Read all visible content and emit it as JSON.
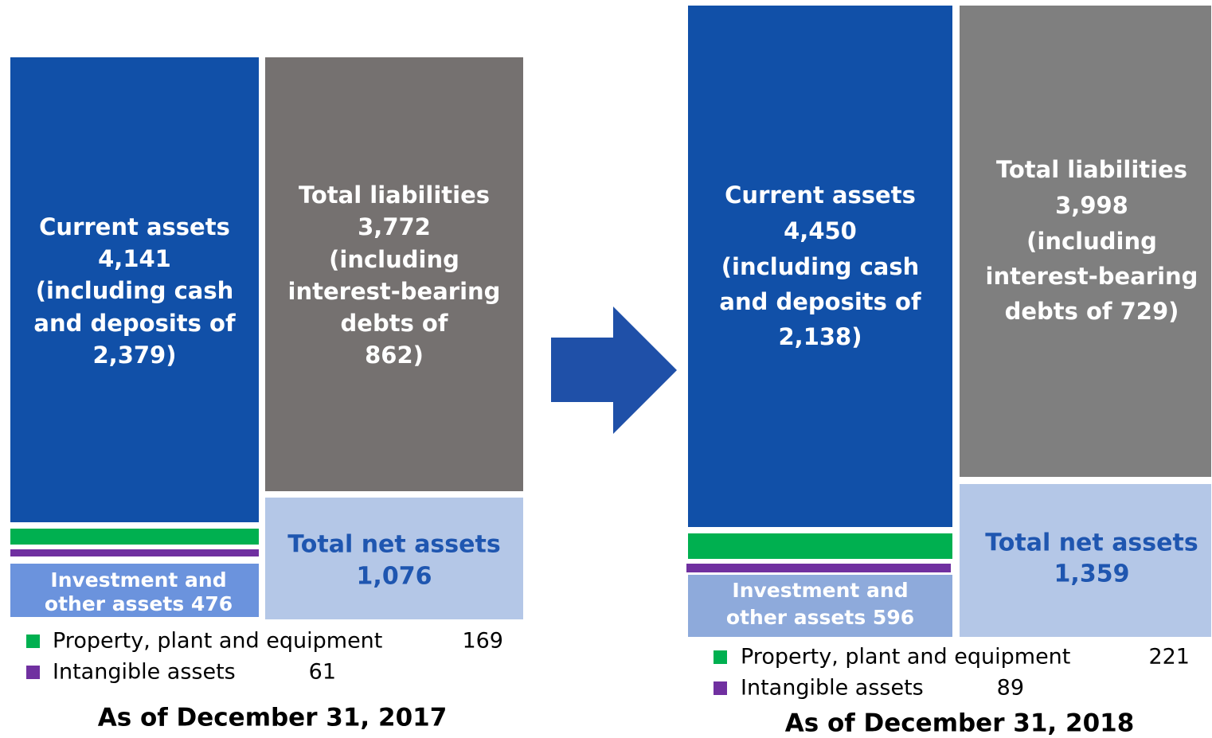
{
  "panels": [
    {
      "current_assets": [
        "Current assets",
        "4,141",
        "(including cash",
        "and deposits of",
        "2,379)"
      ],
      "total_liabilities": [
        "Total liabilities",
        "3,772",
        "(including",
        "interest-bearing",
        "debts of",
        "862)"
      ],
      "total_net_assets": [
        "Total net assets",
        "1,076"
      ],
      "investment": [
        "Investment and",
        "other assets 476"
      ],
      "legend": [
        {
          "label": "Property, plant and equipment",
          "value": "169"
        },
        {
          "label": "Intangible assets",
          "value": "61"
        }
      ],
      "title": "As of December 31, 2017"
    },
    {
      "current_assets": [
        "Current assets",
        "4,450",
        "(including cash",
        "and deposits of",
        "2,138)"
      ],
      "total_liabilities": [
        "Total liabilities",
        "3,998",
        "(including",
        "interest-bearing",
        "debts of 729)"
      ],
      "total_net_assets": [
        "Total net assets",
        "1,359"
      ],
      "investment": [
        "Investment and",
        "other assets 596"
      ],
      "legend": [
        {
          "label": "Property, plant and equipment",
          "value": "221"
        },
        {
          "label": "Intangible assets",
          "value": "89"
        }
      ],
      "title": "As of December 31, 2018"
    }
  ]
}
